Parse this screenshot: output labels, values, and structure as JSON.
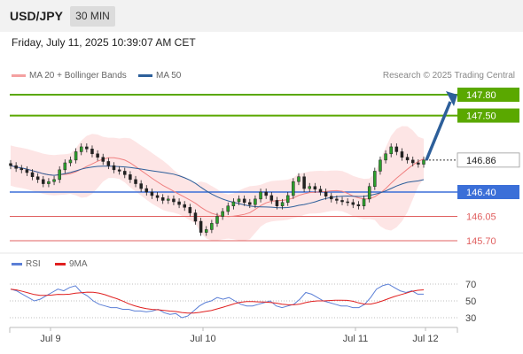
{
  "header": {
    "symbol": "USD/JPY",
    "timeframe": "30 MIN"
  },
  "timestamp": "Friday, July 11, 2025 10:39:07 AM CET",
  "legend": {
    "ma20": {
      "label": "MA 20 + Bollinger Bands",
      "color": "#f08080"
    },
    "ma50": {
      "label": "MA 50",
      "color": "#2d5f9a"
    }
  },
  "credit": "Research © 2025 Trading Central",
  "rsi_legend": {
    "rsi": {
      "label": "RSI",
      "color": "#5b7fd6"
    },
    "ma9": {
      "label": "9MA",
      "color": "#e02020"
    }
  },
  "chart_data": {
    "type": "candlestick",
    "price_levels": [
      {
        "value": 147.8,
        "label": "147.80",
        "kind": "target",
        "color": "#5aa800"
      },
      {
        "value": 147.5,
        "label": "147.50",
        "kind": "target",
        "color": "#5aa800"
      },
      {
        "value": 146.86,
        "label": "146.86",
        "kind": "last",
        "color": "#333333"
      },
      {
        "value": 146.4,
        "label": "146.40",
        "kind": "pivot",
        "color": "#3b6fd8"
      },
      {
        "value": 146.05,
        "label": "146.05",
        "kind": "support",
        "color": "#e06060"
      },
      {
        "value": 145.7,
        "label": "145.70",
        "kind": "support",
        "color": "#e06060"
      }
    ],
    "x_ticks": [
      "Jul 9",
      "Jul 10",
      "Jul 11",
      "Jul 12"
    ],
    "rsi_ticks": [
      70,
      50,
      30
    ],
    "ohlc_close_approx": [
      146.78,
      146.74,
      146.72,
      146.68,
      146.62,
      146.58,
      146.52,
      146.55,
      146.58,
      146.72,
      146.82,
      146.86,
      146.98,
      147.05,
      147.02,
      146.95,
      146.9,
      146.84,
      146.78,
      146.72,
      146.7,
      146.65,
      146.58,
      146.52,
      146.45,
      146.4,
      146.35,
      146.32,
      146.28,
      146.3,
      146.26,
      146.22,
      146.18,
      146.1,
      145.98,
      145.82,
      145.86,
      145.95,
      146.05,
      146.12,
      146.2,
      146.26,
      146.3,
      146.25,
      146.22,
      146.3,
      146.4,
      146.35,
      146.28,
      146.2,
      146.25,
      146.35,
      146.55,
      146.62,
      146.45,
      146.48,
      146.44,
      146.4,
      146.34,
      146.3,
      146.28,
      146.26,
      146.25,
      146.22,
      146.2,
      146.3,
      146.48,
      146.7,
      146.86,
      146.95,
      147.05,
      146.98,
      146.9,
      146.86,
      146.82,
      146.8,
      146.86
    ],
    "rsi_approx": [
      64,
      62,
      58,
      54,
      50,
      52,
      56,
      60,
      64,
      62,
      66,
      68,
      60,
      56,
      50,
      46,
      44,
      42,
      42,
      40,
      40,
      38,
      38,
      37,
      38,
      40,
      36,
      34,
      35,
      30,
      32,
      38,
      44,
      48,
      50,
      54,
      52,
      54,
      50,
      46,
      44,
      44,
      46,
      48,
      50,
      44,
      42,
      44,
      46,
      52,
      60,
      58,
      54,
      50,
      48,
      46,
      44,
      44,
      42,
      42,
      46,
      54,
      64,
      68,
      70,
      66,
      62,
      60,
      62,
      58,
      58
    ]
  }
}
